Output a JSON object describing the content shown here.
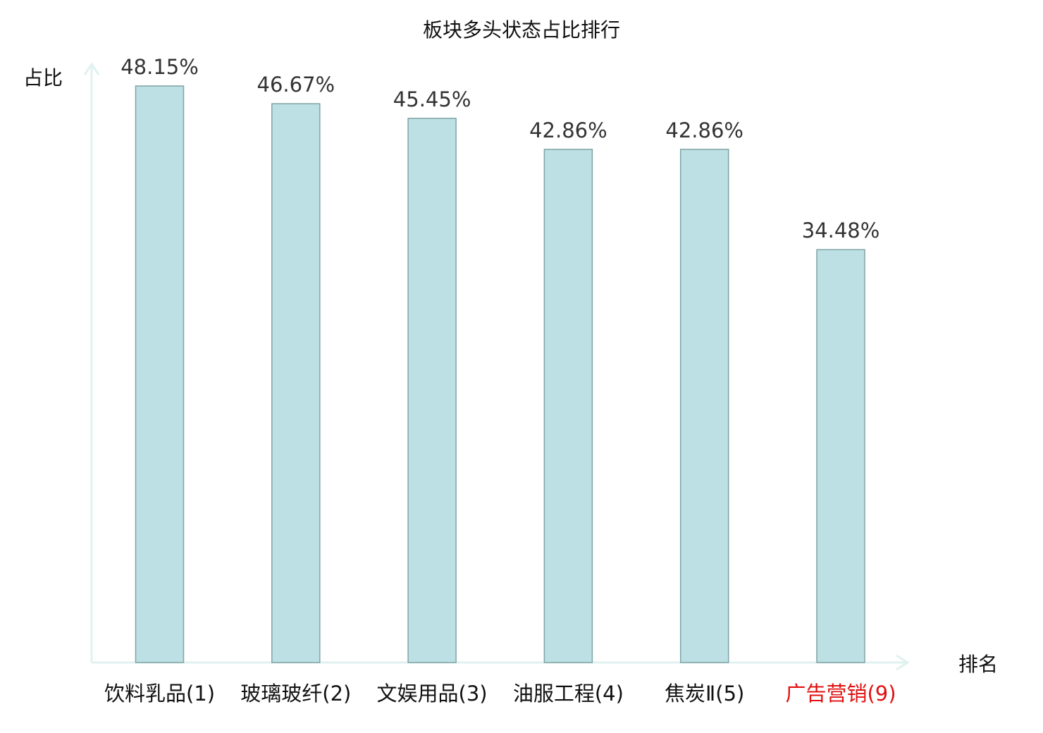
{
  "chart_data": {
    "type": "bar",
    "title": "板块多头状态占比排行",
    "xlabel": "排名",
    "ylabel": "占比",
    "categories": [
      "饮料乳品(1)",
      "玻璃玻纤(2)",
      "文娱用品(3)",
      "油服工程(4)",
      "焦炭Ⅱ(5)",
      "广告营销(9)"
    ],
    "values": [
      48.15,
      46.67,
      45.45,
      42.86,
      42.86,
      34.48
    ],
    "value_labels": [
      "48.15%",
      "46.67%",
      "45.45%",
      "42.86%",
      "42.86%",
      "34.48%"
    ],
    "ylim": [
      0,
      48.15
    ],
    "grid": false,
    "legend": "none",
    "colors": {
      "bar_fill": "#bce0e3",
      "bar_stroke": "#7fa3a6",
      "axis": "#e0f2ef",
      "label_default": "#111111",
      "label_highlight": "#e01010"
    },
    "highlight_categories": [
      "广告营销(9)"
    ]
  }
}
